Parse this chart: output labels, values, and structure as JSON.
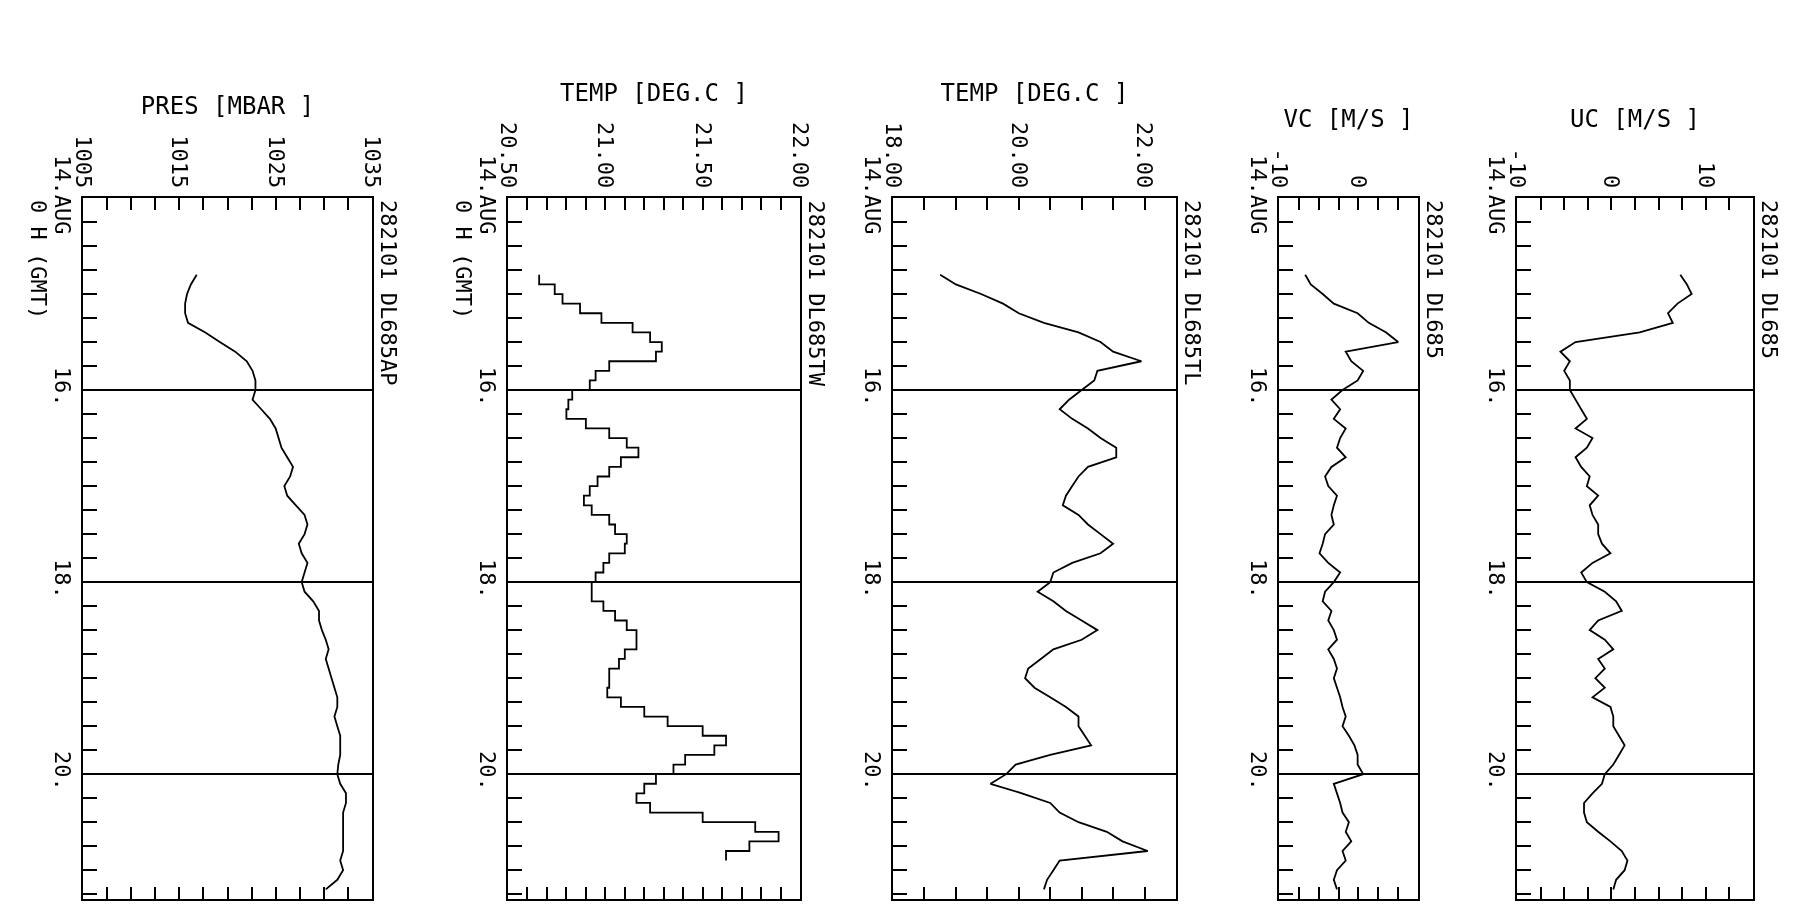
{
  "chart_data": [
    {
      "type": "line",
      "orientation": "horizontal",
      "xlabel": "PRES [MBAR ]",
      "ylabel": "0 H (GMT)",
      "annotations": [
        "282101 DL685AP"
      ],
      "color": "#000000",
      "grid": "y",
      "x": [
        14.8,
        14.9,
        15.0,
        15.1,
        15.2,
        15.3,
        15.4,
        15.5,
        15.6,
        15.7,
        15.8,
        15.9,
        16.0,
        16.1,
        16.2,
        16.3,
        16.4,
        16.5,
        16.6,
        16.7,
        16.8,
        16.9,
        17.0,
        17.1,
        17.2,
        17.3,
        17.4,
        17.5,
        17.6,
        17.7,
        17.8,
        17.9,
        18.0,
        18.1,
        18.2,
        18.3,
        18.4,
        18.5,
        18.6,
        18.7,
        18.8,
        18.9,
        19.0,
        19.1,
        19.2,
        19.3,
        19.4,
        19.5,
        19.6,
        19.7,
        19.8,
        19.9,
        20.0,
        20.1,
        20.2,
        20.3,
        20.4,
        20.5,
        20.6,
        20.7,
        20.8,
        20.9,
        21.0,
        21.1,
        21.2
      ],
      "values": [
        1016.8,
        1016.2,
        1015.8,
        1015.6,
        1015.6,
        1015.9,
        1017.7,
        1019.2,
        1020.8,
        1022.0,
        1022.6,
        1022.9,
        1022.9,
        1022.6,
        1023.5,
        1024.4,
        1025.0,
        1025.3,
        1025.6,
        1026.2,
        1026.8,
        1026.5,
        1025.9,
        1026.2,
        1027.1,
        1028.0,
        1028.3,
        1028.0,
        1027.4,
        1027.7,
        1028.3,
        1028.0,
        1027.7,
        1028.0,
        1028.9,
        1029.5,
        1029.5,
        1029.8,
        1030.2,
        1030.5,
        1030.2,
        1030.5,
        1030.8,
        1031.1,
        1031.4,
        1031.4,
        1031.1,
        1031.4,
        1031.7,
        1031.7,
        1031.7,
        1031.5,
        1031.4,
        1031.7,
        1032.3,
        1032.3,
        1032.0,
        1032.0,
        1032.0,
        1032.0,
        1032.0,
        1031.7,
        1032.0,
        1031.4,
        1030.2
      ],
      "xlim": [
        1005,
        1035
      ],
      "xticks": [
        1005,
        {
          "value": 1007.5,
          "label": null
        },
        {
          "value": 1010,
          "label": null
        },
        {
          "value": 1012.5,
          "label": null
        },
        1015,
        {
          "value": 1017.5,
          "label": null
        },
        {
          "value": 1020,
          "label": null
        },
        {
          "value": 1022.5,
          "label": null
        },
        1025,
        {
          "value": 1027.5,
          "label": null
        },
        {
          "value": 1030,
          "label": null
        },
        {
          "value": 1032.5,
          "label": null
        },
        1035
      ],
      "ylim": [
        21.3,
        14
      ],
      "yticks": [
        {
          "value": 14,
          "label": "14.AUG"
        },
        {
          "value": 14.25,
          "label": null
        },
        {
          "value": 14.5,
          "label": null
        },
        {
          "value": 14.75,
          "label": null
        },
        {
          "value": 15,
          "label": null
        },
        {
          "value": 15.25,
          "label": null
        },
        {
          "value": 15.5,
          "label": null
        },
        {
          "value": 15.75,
          "label": null
        },
        {
          "value": 16,
          "label": "16."
        },
        {
          "value": 16.25,
          "label": null
        },
        {
          "value": 16.5,
          "label": null
        },
        {
          "value": 16.75,
          "label": null
        },
        {
          "value": 17,
          "label": null
        },
        {
          "value": 17.25,
          "label": null
        },
        {
          "value": 17.5,
          "label": null
        },
        {
          "value": 17.75,
          "label": null
        },
        {
          "value": 18,
          "label": "18."
        },
        {
          "value": 18.25,
          "label": null
        },
        {
          "value": 18.5,
          "label": null
        },
        {
          "value": 18.75,
          "label": null
        },
        {
          "value": 19,
          "label": null
        },
        {
          "value": 19.25,
          "label": null
        },
        {
          "value": 19.5,
          "label": null
        },
        {
          "value": 19.75,
          "label": null
        },
        {
          "value": 20,
          "label": "20."
        },
        {
          "value": 20.25,
          "label": null
        },
        {
          "value": 20.5,
          "label": null
        },
        {
          "value": 20.75,
          "label": null
        },
        {
          "value": 21,
          "label": null
        },
        {
          "value": 21.25,
          "label": null
        }
      ]
    },
    {
      "type": "step",
      "orientation": "horizontal",
      "xlabel": "TEMP [DEG.C ]",
      "ylabel": "0 H (GMT)",
      "annotations": [
        "282101 DL685TW"
      ],
      "color": "#000000",
      "grid": "y",
      "x": [
        14.8,
        14.9,
        15.0,
        15.1,
        15.2,
        15.3,
        15.4,
        15.5,
        15.6,
        15.7,
        15.8,
        15.9,
        16.0,
        16.1,
        16.2,
        16.3,
        16.4,
        16.5,
        16.6,
        16.7,
        16.8,
        16.9,
        17.0,
        17.1,
        17.2,
        17.3,
        17.4,
        17.5,
        17.6,
        17.7,
        17.8,
        17.9,
        18.0,
        18.1,
        18.2,
        18.3,
        18.4,
        18.5,
        18.6,
        18.7,
        18.8,
        18.9,
        19.0,
        19.1,
        19.2,
        19.3,
        19.4,
        19.5,
        19.6,
        19.7,
        19.8,
        19.9,
        20.0,
        20.1,
        20.2,
        20.3,
        20.4,
        20.5,
        20.6,
        20.7,
        20.8,
        20.9
      ],
      "values": [
        20.66,
        20.66,
        20.74,
        20.78,
        20.87,
        20.98,
        21.14,
        21.23,
        21.29,
        21.26,
        21.02,
        20.95,
        20.92,
        20.83,
        20.81,
        20.8,
        20.9,
        21.02,
        21.11,
        21.17,
        21.08,
        21.02,
        20.96,
        20.92,
        20.89,
        20.93,
        21.02,
        21.05,
        21.11,
        21.1,
        21.02,
        20.99,
        20.95,
        20.93,
        20.93,
        20.99,
        21.05,
        21.11,
        21.16,
        21.16,
        21.1,
        21.07,
        21.02,
        21.02,
        21.01,
        21.08,
        21.2,
        21.32,
        21.5,
        21.62,
        21.56,
        21.41,
        21.35,
        21.26,
        21.2,
        21.16,
        21.23,
        21.5,
        21.77,
        21.89,
        21.74,
        21.62
      ],
      "xlim": [
        20.5,
        22
      ],
      "xticks": [
        {
          "value": 20.5,
          "label": "20.50"
        },
        {
          "value": 20.6,
          "label": null
        },
        {
          "value": 20.7,
          "label": null
        },
        {
          "value": 20.8,
          "label": null
        },
        {
          "value": 20.9,
          "label": null
        },
        {
          "value": 21,
          "label": "21.00"
        },
        {
          "value": 21.1,
          "label": null
        },
        {
          "value": 21.2,
          "label": null
        },
        {
          "value": 21.3,
          "label": null
        },
        {
          "value": 21.4,
          "label": null
        },
        {
          "value": 21.5,
          "label": "21.50"
        },
        {
          "value": 21.6,
          "label": null
        },
        {
          "value": 21.7,
          "label": null
        },
        {
          "value": 21.8,
          "label": null
        },
        {
          "value": 21.9,
          "label": null
        },
        {
          "value": 22,
          "label": "22.00"
        }
      ],
      "ylim": [
        21.3,
        14
      ],
      "yticks": [
        {
          "value": 14,
          "label": "14.AUG"
        },
        {
          "value": 14.25,
          "label": null
        },
        {
          "value": 14.5,
          "label": null
        },
        {
          "value": 14.75,
          "label": null
        },
        {
          "value": 15,
          "label": null
        },
        {
          "value": 15.25,
          "label": null
        },
        {
          "value": 15.5,
          "label": null
        },
        {
          "value": 15.75,
          "label": null
        },
        {
          "value": 16,
          "label": "16."
        },
        {
          "value": 16.25,
          "label": null
        },
        {
          "value": 16.5,
          "label": null
        },
        {
          "value": 16.75,
          "label": null
        },
        {
          "value": 17,
          "label": null
        },
        {
          "value": 17.25,
          "label": null
        },
        {
          "value": 17.5,
          "label": null
        },
        {
          "value": 17.75,
          "label": null
        },
        {
          "value": 18,
          "label": "18."
        },
        {
          "value": 18.25,
          "label": null
        },
        {
          "value": 18.5,
          "label": null
        },
        {
          "value": 18.75,
          "label": null
        },
        {
          "value": 19,
          "label": null
        },
        {
          "value": 19.25,
          "label": null
        },
        {
          "value": 19.5,
          "label": null
        },
        {
          "value": 19.75,
          "label": null
        },
        {
          "value": 20,
          "label": "20."
        },
        {
          "value": 20.25,
          "label": null
        },
        {
          "value": 20.5,
          "label": null
        },
        {
          "value": 20.75,
          "label": null
        },
        {
          "value": 21,
          "label": null
        },
        {
          "value": 21.25,
          "label": null
        }
      ]
    },
    {
      "type": "line",
      "orientation": "horizontal",
      "xlabel": "TEMP [DEG.C ]",
      "annotations": [
        "282101 DL685TL"
      ],
      "color": "#000000",
      "grid": "y",
      "x": [
        14.8,
        14.9,
        15.0,
        15.1,
        15.2,
        15.3,
        15.4,
        15.5,
        15.6,
        15.7,
        15.8,
        15.9,
        16.0,
        16.1,
        16.2,
        16.3,
        16.4,
        16.5,
        16.6,
        16.7,
        16.8,
        16.9,
        17.0,
        17.1,
        17.2,
        17.3,
        17.4,
        17.5,
        17.6,
        17.7,
        17.8,
        17.9,
        18.0,
        18.1,
        18.2,
        18.3,
        18.4,
        18.5,
        18.6,
        18.7,
        18.8,
        18.9,
        19.0,
        19.1,
        19.2,
        19.3,
        19.4,
        19.5,
        19.6,
        19.7,
        19.8,
        19.9,
        20.0,
        20.1,
        20.2,
        20.3,
        20.4,
        20.5,
        20.6,
        20.7,
        20.8,
        20.9,
        21.0,
        21.1,
        21.2
      ],
      "values": [
        18.75,
        19.0,
        19.4,
        19.75,
        20.0,
        20.4,
        20.95,
        21.3,
        21.5,
        21.95,
        21.25,
        21.2,
        21.0,
        20.8,
        20.65,
        20.85,
        21.1,
        21.3,
        21.55,
        21.55,
        21.1,
        20.95,
        20.85,
        20.75,
        20.7,
        20.95,
        21.1,
        21.3,
        21.5,
        21.3,
        20.85,
        20.55,
        20.5,
        20.3,
        20.55,
        20.75,
        21.0,
        21.25,
        21.0,
        20.55,
        20.35,
        20.15,
        20.1,
        20.25,
        20.5,
        20.75,
        20.95,
        20.95,
        21.05,
        21.15,
        20.5,
        19.95,
        19.8,
        19.55,
        20.05,
        20.5,
        20.65,
        20.95,
        21.4,
        21.65,
        22.05,
        20.65,
        20.55,
        20.45,
        20.4
      ],
      "xlim": [
        18,
        22.5
      ],
      "xticks": [
        {
          "value": 18,
          "label": "18.00"
        },
        {
          "value": 18.5,
          "label": null
        },
        {
          "value": 19,
          "label": null
        },
        {
          "value": 19.5,
          "label": null
        },
        {
          "value": 20,
          "label": "20.00"
        },
        {
          "value": 20.5,
          "label": null
        },
        {
          "value": 21,
          "label": null
        },
        {
          "value": 21.5,
          "label": null
        },
        {
          "value": 22,
          "label": "22.00"
        }
      ],
      "ylim": [
        21.3,
        14
      ],
      "yticks": [
        {
          "value": 14,
          "label": "14.AUG"
        },
        {
          "value": 14.25,
          "label": null
        },
        {
          "value": 14.5,
          "label": null
        },
        {
          "value": 14.75,
          "label": null
        },
        {
          "value": 15,
          "label": null
        },
        {
          "value": 15.25,
          "label": null
        },
        {
          "value": 15.5,
          "label": null
        },
        {
          "value": 15.75,
          "label": null
        },
        {
          "value": 16,
          "label": "16."
        },
        {
          "value": 16.25,
          "label": null
        },
        {
          "value": 16.5,
          "label": null
        },
        {
          "value": 16.75,
          "label": null
        },
        {
          "value": 17,
          "label": null
        },
        {
          "value": 17.25,
          "label": null
        },
        {
          "value": 17.5,
          "label": null
        },
        {
          "value": 17.75,
          "label": null
        },
        {
          "value": 18,
          "label": "18."
        },
        {
          "value": 18.25,
          "label": null
        },
        {
          "value": 18.5,
          "label": null
        },
        {
          "value": 18.75,
          "label": null
        },
        {
          "value": 19,
          "label": null
        },
        {
          "value": 19.25,
          "label": null
        },
        {
          "value": 19.5,
          "label": null
        },
        {
          "value": 19.75,
          "label": null
        },
        {
          "value": 20,
          "label": "20."
        },
        {
          "value": 20.25,
          "label": null
        },
        {
          "value": 20.5,
          "label": null
        },
        {
          "value": 20.75,
          "label": null
        },
        {
          "value": 21,
          "label": null
        },
        {
          "value": 21.25,
          "label": null
        }
      ]
    },
    {
      "type": "line",
      "orientation": "horizontal",
      "xlabel": "VC [M/S ]",
      "annotations": [
        "282101 DL685"
      ],
      "color": "#000000",
      "grid": "y",
      "x": [
        14.8,
        14.9,
        15.0,
        15.1,
        15.2,
        15.3,
        15.4,
        15.5,
        15.6,
        15.7,
        15.8,
        15.9,
        16.0,
        16.1,
        16.2,
        16.3,
        16.4,
        16.5,
        16.6,
        16.7,
        16.8,
        16.9,
        17.0,
        17.1,
        17.2,
        17.3,
        17.4,
        17.5,
        17.6,
        17.7,
        17.8,
        17.9,
        18.0,
        18.1,
        18.2,
        18.3,
        18.4,
        18.5,
        18.6,
        18.7,
        18.8,
        18.9,
        19.0,
        19.1,
        19.2,
        19.3,
        19.4,
        19.5,
        19.6,
        19.7,
        19.8,
        19.9,
        20.0,
        20.1,
        20.2,
        20.3,
        20.4,
        20.5,
        20.6,
        20.7,
        20.8,
        20.9,
        21.0,
        21.1,
        21.2
      ],
      "values": [
        -6.7,
        -6,
        -4.5,
        -3.1,
        -0.1,
        1.3,
        3.5,
        5,
        -1.6,
        -0.9,
        0.6,
        -0.1,
        -2,
        -3.4,
        -2.3,
        -3.1,
        -1.6,
        -2.3,
        -2.7,
        -1.6,
        -3.4,
        -4.2,
        -3.8,
        -2.7,
        -3.1,
        -3.4,
        -3.1,
        -4.2,
        -4.5,
        -4.9,
        -3.8,
        -2.3,
        -3.1,
        -4.2,
        -4.5,
        -3.4,
        -3.8,
        -3.1,
        -2.7,
        -3.8,
        -3.1,
        -2.7,
        -3.1,
        -2.7,
        -2.3,
        -2,
        -1.6,
        -2,
        -1.2,
        -0.5,
        -0.1,
        -0.1,
        0.6,
        -3.1,
        -2.7,
        -2.3,
        -2,
        -1.2,
        -1.6,
        -0.9,
        -2,
        -1.6,
        -2.7,
        -3.1,
        -2.7
      ],
      "xlim": [
        -10,
        7.5
      ],
      "xticks": [
        -10,
        {
          "value": -7.5,
          "label": null
        },
        {
          "value": -5,
          "label": null
        },
        {
          "value": -2.5,
          "label": null
        },
        0,
        {
          "value": 2.5,
          "label": null
        },
        {
          "value": 5,
          "label": null
        }
      ],
      "ylim": [
        21.3,
        14
      ],
      "yticks": [
        {
          "value": 14,
          "label": "14.AUG"
        },
        {
          "value": 14.25,
          "label": null
        },
        {
          "value": 14.5,
          "label": null
        },
        {
          "value": 14.75,
          "label": null
        },
        {
          "value": 15,
          "label": null
        },
        {
          "value": 15.25,
          "label": null
        },
        {
          "value": 15.5,
          "label": null
        },
        {
          "value": 15.75,
          "label": null
        },
        {
          "value": 16,
          "label": "16."
        },
        {
          "value": 16.25,
          "label": null
        },
        {
          "value": 16.5,
          "label": null
        },
        {
          "value": 16.75,
          "label": null
        },
        {
          "value": 17,
          "label": null
        },
        {
          "value": 17.25,
          "label": null
        },
        {
          "value": 17.5,
          "label": null
        },
        {
          "value": 17.75,
          "label": null
        },
        {
          "value": 18,
          "label": "18."
        },
        {
          "value": 18.25,
          "label": null
        },
        {
          "value": 18.5,
          "label": null
        },
        {
          "value": 18.75,
          "label": null
        },
        {
          "value": 19,
          "label": null
        },
        {
          "value": 19.25,
          "label": null
        },
        {
          "value": 19.5,
          "label": null
        },
        {
          "value": 19.75,
          "label": null
        },
        {
          "value": 20,
          "label": "20."
        },
        {
          "value": 20.25,
          "label": null
        },
        {
          "value": 20.5,
          "label": null
        },
        {
          "value": 20.75,
          "label": null
        },
        {
          "value": 21,
          "label": null
        },
        {
          "value": 21.25,
          "label": null
        }
      ]
    },
    {
      "type": "line",
      "orientation": "horizontal",
      "xlabel": "UC [M/S ]",
      "annotations": [
        "282101 DL685"
      ],
      "color": "#000000",
      "grid": "y",
      "x": [
        14.8,
        14.9,
        15.0,
        15.1,
        15.2,
        15.3,
        15.4,
        15.5,
        15.6,
        15.7,
        15.8,
        15.9,
        16.0,
        16.1,
        16.2,
        16.3,
        16.4,
        16.5,
        16.6,
        16.7,
        16.8,
        16.9,
        17.0,
        17.1,
        17.2,
        17.3,
        17.4,
        17.5,
        17.6,
        17.7,
        17.8,
        17.9,
        18.0,
        18.1,
        18.2,
        18.3,
        18.4,
        18.5,
        18.6,
        18.7,
        18.8,
        18.9,
        19.0,
        19.1,
        19.2,
        19.3,
        19.4,
        19.5,
        19.6,
        19.7,
        19.8,
        19.9,
        20.0,
        20.1,
        20.2,
        20.3,
        20.4,
        20.5,
        20.6,
        20.7,
        20.8,
        20.9,
        21.0,
        21.1,
        21.2
      ],
      "values": [
        7.3,
        8,
        8.5,
        7,
        6,
        6.5,
        3,
        -3.8,
        -5.4,
        -4.4,
        -5,
        -4.4,
        -4.4,
        -3.8,
        -3.2,
        -2.6,
        -3.8,
        -2,
        -2.6,
        -3.8,
        -3.2,
        -2.3,
        -2.6,
        -1.4,
        -2.3,
        -2,
        -1.4,
        -1.4,
        -1,
        -0.1,
        -2,
        -3.2,
        -2.6,
        -0.7,
        0.5,
        1.1,
        -1.4,
        -2.3,
        -0.7,
        0.2,
        -1.4,
        -0.7,
        -1.7,
        -0.7,
        -2,
        -0.1,
        0.2,
        0.2,
        0.8,
        1.4,
        0.8,
        0.2,
        -0.7,
        -1,
        -2,
        -2.9,
        -2.9,
        -2.6,
        -1.4,
        -0.1,
        1.1,
        1.7,
        1.4,
        0.5,
        0.2
      ],
      "xlim": [
        -10,
        15
      ],
      "xticks": [
        -10,
        {
          "value": -7.5,
          "label": null
        },
        {
          "value": -5,
          "label": null
        },
        {
          "value": -2.5,
          "label": null
        },
        0,
        {
          "value": 2.5,
          "label": null
        },
        {
          "value": 5,
          "label": null
        },
        {
          "value": 7.5,
          "label": null
        },
        10,
        {
          "value": 12.5,
          "label": null
        }
      ],
      "ylim": [
        21.3,
        14
      ],
      "yticks": [
        {
          "value": 14,
          "label": "14.AUG"
        },
        {
          "value": 14.25,
          "label": null
        },
        {
          "value": 14.5,
          "label": null
        },
        {
          "value": 14.75,
          "label": null
        },
        {
          "value": 15,
          "label": null
        },
        {
          "value": 15.25,
          "label": null
        },
        {
          "value": 15.5,
          "label": null
        },
        {
          "value": 15.75,
          "label": null
        },
        {
          "value": 16,
          "label": "16."
        },
        {
          "value": 16.25,
          "label": null
        },
        {
          "value": 16.5,
          "label": null
        },
        {
          "value": 16.75,
          "label": null
        },
        {
          "value": 17,
          "label": null
        },
        {
          "value": 17.25,
          "label": null
        },
        {
          "value": 17.5,
          "label": null
        },
        {
          "value": 17.75,
          "label": null
        },
        {
          "value": 18,
          "label": "18."
        },
        {
          "value": 18.25,
          "label": null
        },
        {
          "value": 18.5,
          "label": null
        },
        {
          "value": 18.75,
          "label": null
        },
        {
          "value": 19,
          "label": null
        },
        {
          "value": 19.25,
          "label": null
        },
        {
          "value": 19.5,
          "label": null
        },
        {
          "value": 19.75,
          "label": null
        },
        {
          "value": 20,
          "label": "20."
        },
        {
          "value": 20.25,
          "label": null
        },
        {
          "value": 20.5,
          "label": null
        },
        {
          "value": 20.75,
          "label": null
        },
        {
          "value": 21,
          "label": null
        },
        {
          "value": 21.25,
          "label": null
        }
      ]
    }
  ]
}
